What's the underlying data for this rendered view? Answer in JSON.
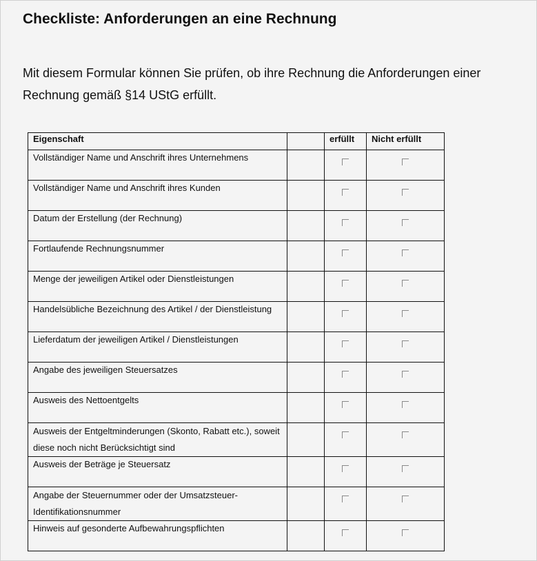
{
  "title": "Checkliste: Anforderungen an eine Rechnung",
  "intro": "Mit diesem Formular können Sie prüfen, ob ihre Rechnung die Anforderungen einer Rechnung gemäß §14 UStG erfüllt.",
  "table": {
    "headers": [
      "Eigenschaft",
      "",
      "erfüllt",
      "Nicht erfüllt"
    ],
    "rows": [
      {
        "label": "Vollständiger Name und Anschrift ihres Unternehmens",
        "erfuellt": false,
        "nicht_erfuellt": false
      },
      {
        "label": "Vollständiger Name und Anschrift ihres Kunden",
        "erfuellt": false,
        "nicht_erfuellt": false
      },
      {
        "label": "Datum der Erstellung (der Rechnung)",
        "erfuellt": false,
        "nicht_erfuellt": false
      },
      {
        "label": "Fortlaufende Rechnungsnummer",
        "erfuellt": false,
        "nicht_erfuellt": false
      },
      {
        "label": "Menge der jeweiligen Artikel oder Dienstleistungen",
        "erfuellt": false,
        "nicht_erfuellt": false
      },
      {
        "label": "Handelsübliche Bezeichnung des Artikel / der Dienstleistung",
        "erfuellt": false,
        "nicht_erfuellt": false
      },
      {
        "label": "Lieferdatum der jeweiligen Artikel / Dienstleistungen",
        "erfuellt": false,
        "nicht_erfuellt": false
      },
      {
        "label": "Angabe des jeweiligen Steuersatzes",
        "erfuellt": false,
        "nicht_erfuellt": false
      },
      {
        "label": "Ausweis des Nettoentgelts",
        "erfuellt": false,
        "nicht_erfuellt": false
      },
      {
        "label": "Ausweis der Entgeltminderungen (Skonto, Rabatt etc.), soweit diese noch nicht Berücksichtigt sind",
        "erfuellt": false,
        "nicht_erfuellt": false
      },
      {
        "label": "Ausweis der Beträge je Steuersatz",
        "erfuellt": false,
        "nicht_erfuellt": false
      },
      {
        "label": "Angabe der Steuernummer oder der Umsatzsteuer-Identifikationsnummer",
        "erfuellt": false,
        "nicht_erfuellt": false
      },
      {
        "label": "Hinweis auf gesonderte Aufbewahrungspflichten",
        "erfuellt": false,
        "nicht_erfuellt": false
      }
    ]
  }
}
